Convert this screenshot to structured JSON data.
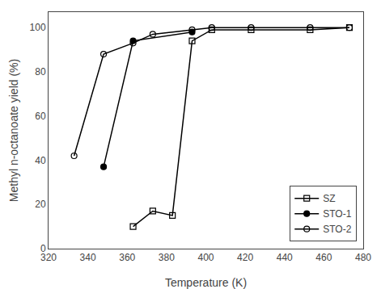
{
  "chart_data": {
    "type": "line",
    "x_label": "Temperature (K)",
    "y_label": "Methyl n-octanoate yield (%)",
    "series": [
      {
        "name": "SZ",
        "color": "#000000",
        "marker": "square-open",
        "line_style": "solid",
        "x": [
          363,
          373,
          383,
          393,
          403,
          423,
          453,
          473
        ],
        "values": [
          10,
          17,
          15,
          94,
          99,
          99,
          99,
          100
        ]
      },
      {
        "name": "STO-1",
        "color": "#000000",
        "marker": "circle",
        "line_style": "solid",
        "x": [
          348,
          363,
          393
        ],
        "values": [
          37,
          94,
          98
        ]
      },
      {
        "name": "STO-2",
        "color": "#000000",
        "marker": "circle-open",
        "line_style": "solid",
        "x": [
          333,
          348,
          363,
          373,
          393,
          403,
          423,
          453,
          473
        ],
        "values": [
          42,
          88,
          93,
          97,
          99,
          100,
          100,
          100,
          100
        ]
      }
    ],
    "xlim": [
      320,
      480
    ],
    "ylim": [
      0,
      107
    ],
    "xticks": [
      320,
      340,
      360,
      380,
      400,
      420,
      440,
      460,
      480
    ],
    "yticks": [
      0,
      20,
      40,
      60,
      80,
      100
    ],
    "grid": false,
    "legend": "lower right"
  }
}
